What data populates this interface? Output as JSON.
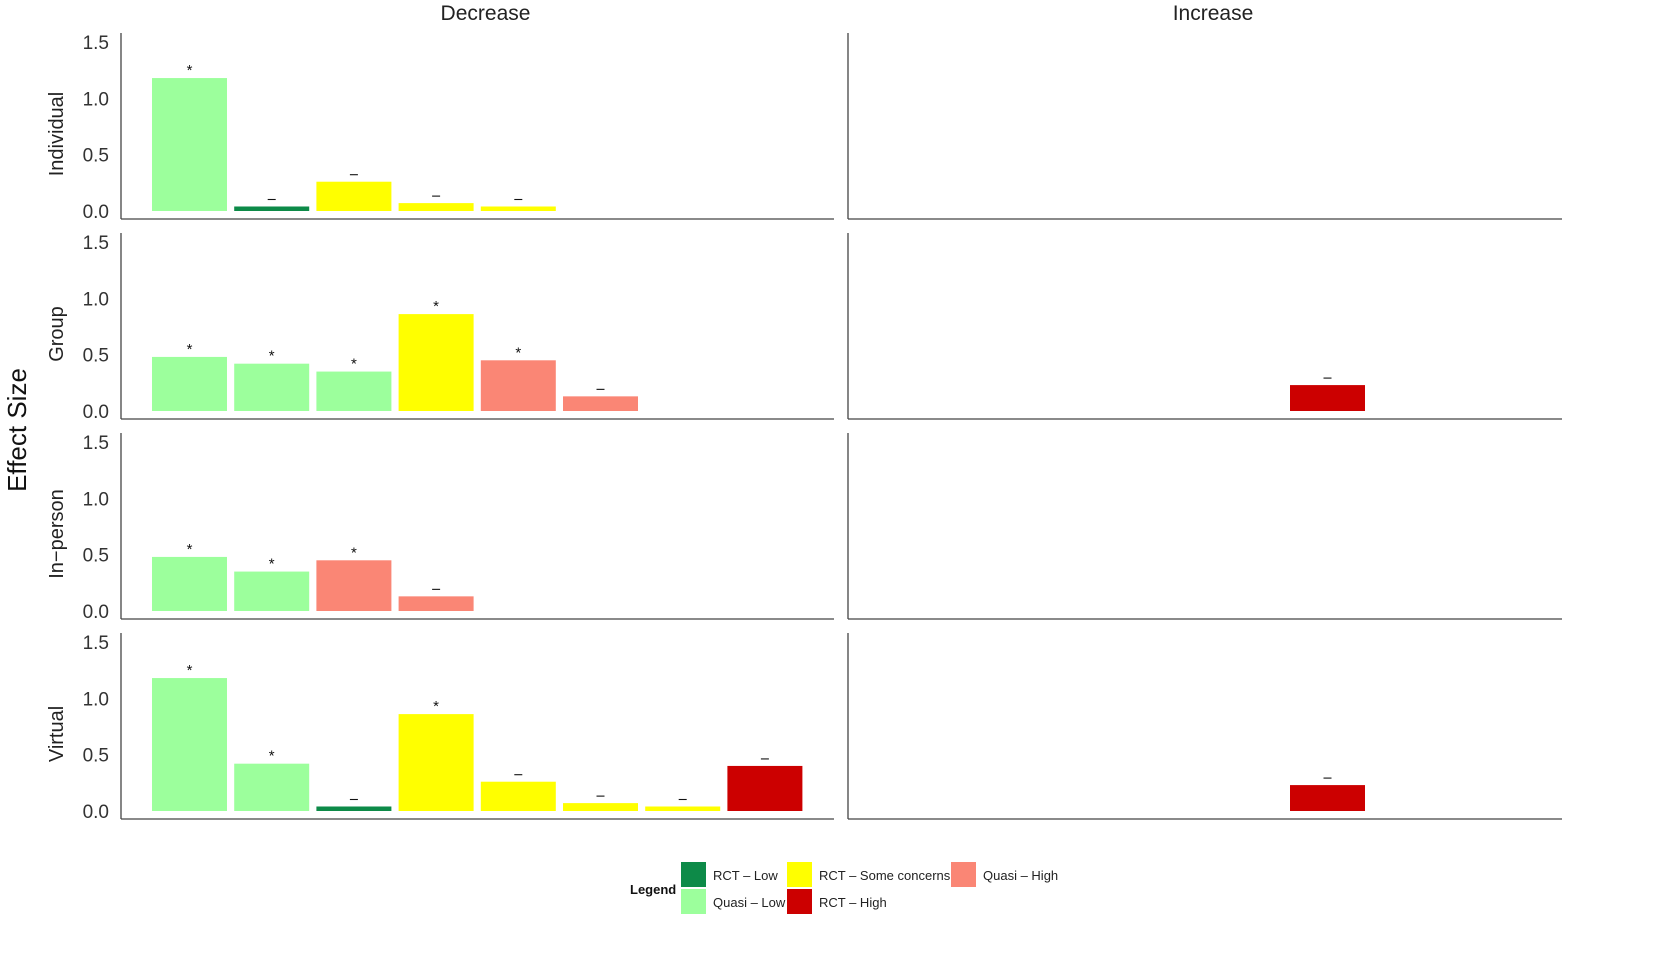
{
  "chart_data": {
    "type": "bar",
    "ylabel": "Effect Size",
    "ylim": [
      0,
      1.5
    ],
    "yticks": [
      "0.0",
      "0.5",
      "1.0",
      "1.5"
    ],
    "columns": [
      "Decrease",
      "Increase"
    ],
    "rows": [
      "Individual",
      "Group",
      "In−person",
      "Virtual"
    ],
    "legend": {
      "title": "Legend",
      "position": "bottom",
      "entries": [
        {
          "label": "RCT – Low",
          "color": "#0d8a48"
        },
        {
          "label": "Quasi – Low",
          "color": "#9cff9c"
        },
        {
          "label": "RCT – Some concerns",
          "color": "#ffff00"
        },
        {
          "label": "RCT – High",
          "color": "#cc0000"
        },
        {
          "label": "Quasi – High",
          "color": "#fa8675"
        }
      ]
    },
    "colors": {
      "RCT – Low": "#0d8a48",
      "Quasi – Low": "#9cff9c",
      "RCT – Some concerns": "#ffff00",
      "RCT – High": "#cc0000",
      "Quasi – High": "#fa8675"
    },
    "panels": [
      {
        "row": "Individual",
        "column": "Decrease",
        "bars": [
          {
            "slot": 1,
            "value": 1.18,
            "group": "Quasi – Low",
            "marker": "*"
          },
          {
            "slot": 2,
            "value": 0.04,
            "group": "RCT – Low",
            "marker": "–"
          },
          {
            "slot": 3,
            "value": 0.26,
            "group": "RCT – Some concerns",
            "marker": "–"
          },
          {
            "slot": 4,
            "value": 0.07,
            "group": "RCT – Some concerns",
            "marker": "–"
          },
          {
            "slot": 5,
            "value": 0.04,
            "group": "RCT – Some concerns",
            "marker": "–"
          }
        ]
      },
      {
        "row": "Individual",
        "column": "Increase",
        "bars": []
      },
      {
        "row": "Group",
        "column": "Decrease",
        "bars": [
          {
            "slot": 1,
            "value": 0.48,
            "group": "Quasi – Low",
            "marker": "*"
          },
          {
            "slot": 2,
            "value": 0.42,
            "group": "Quasi – Low",
            "marker": "*"
          },
          {
            "slot": 3,
            "value": 0.35,
            "group": "Quasi – Low",
            "marker": "*"
          },
          {
            "slot": 4,
            "value": 0.86,
            "group": "RCT – Some concerns",
            "marker": "*"
          },
          {
            "slot": 5,
            "value": 0.45,
            "group": "Quasi – High",
            "marker": "*"
          },
          {
            "slot": 6,
            "value": 0.13,
            "group": "Quasi – High",
            "marker": "–"
          }
        ]
      },
      {
        "row": "Group",
        "column": "Increase",
        "bars": [
          {
            "slot": 6,
            "value": 0.23,
            "group": "RCT – High",
            "marker": "–"
          }
        ]
      },
      {
        "row": "In−person",
        "column": "Decrease",
        "bars": [
          {
            "slot": 1,
            "value": 0.48,
            "group": "Quasi – Low",
            "marker": "*"
          },
          {
            "slot": 2,
            "value": 0.35,
            "group": "Quasi – Low",
            "marker": "*"
          },
          {
            "slot": 3,
            "value": 0.45,
            "group": "Quasi – High",
            "marker": "*"
          },
          {
            "slot": 4,
            "value": 0.13,
            "group": "Quasi – High",
            "marker": "–"
          }
        ]
      },
      {
        "row": "In−person",
        "column": "Increase",
        "bars": []
      },
      {
        "row": "Virtual",
        "column": "Decrease",
        "bars": [
          {
            "slot": 1,
            "value": 1.18,
            "group": "Quasi – Low",
            "marker": "*"
          },
          {
            "slot": 2,
            "value": 0.42,
            "group": "Quasi – Low",
            "marker": "*"
          },
          {
            "slot": 3,
            "value": 0.04,
            "group": "RCT – Low",
            "marker": "–"
          },
          {
            "slot": 4,
            "value": 0.86,
            "group": "RCT – Some concerns",
            "marker": "*"
          },
          {
            "slot": 5,
            "value": 0.26,
            "group": "RCT – Some concerns",
            "marker": "–"
          },
          {
            "slot": 6,
            "value": 0.07,
            "group": "RCT – Some concerns",
            "marker": "–"
          },
          {
            "slot": 7,
            "value": 0.04,
            "group": "RCT – Some concerns",
            "marker": "–"
          },
          {
            "slot": 8,
            "value": 0.4,
            "group": "RCT – High",
            "marker": "–"
          }
        ]
      },
      {
        "row": "Virtual",
        "column": "Increase",
        "bars": [
          {
            "slot": 6,
            "value": 0.23,
            "group": "RCT – High",
            "marker": "–"
          }
        ]
      }
    ]
  }
}
